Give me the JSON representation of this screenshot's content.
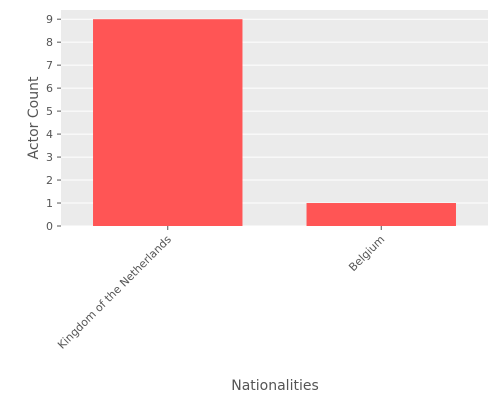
{
  "chart_data": {
    "type": "bar",
    "categories": [
      "Kingdom of the Netherlands",
      "Belgium"
    ],
    "values": [
      9,
      1
    ],
    "title": "",
    "xlabel": "Nationalities",
    "ylabel": "Actor Count",
    "ylim": [
      0,
      9.4
    ],
    "yticks": [
      0,
      1,
      2,
      3,
      4,
      5,
      6,
      7,
      8,
      9
    ],
    "grid": true,
    "legend": "none",
    "colors": {
      "bar": "#ff5555",
      "panel": "#ebebeb",
      "grid": "#ffffff",
      "text": "#555555"
    }
  }
}
